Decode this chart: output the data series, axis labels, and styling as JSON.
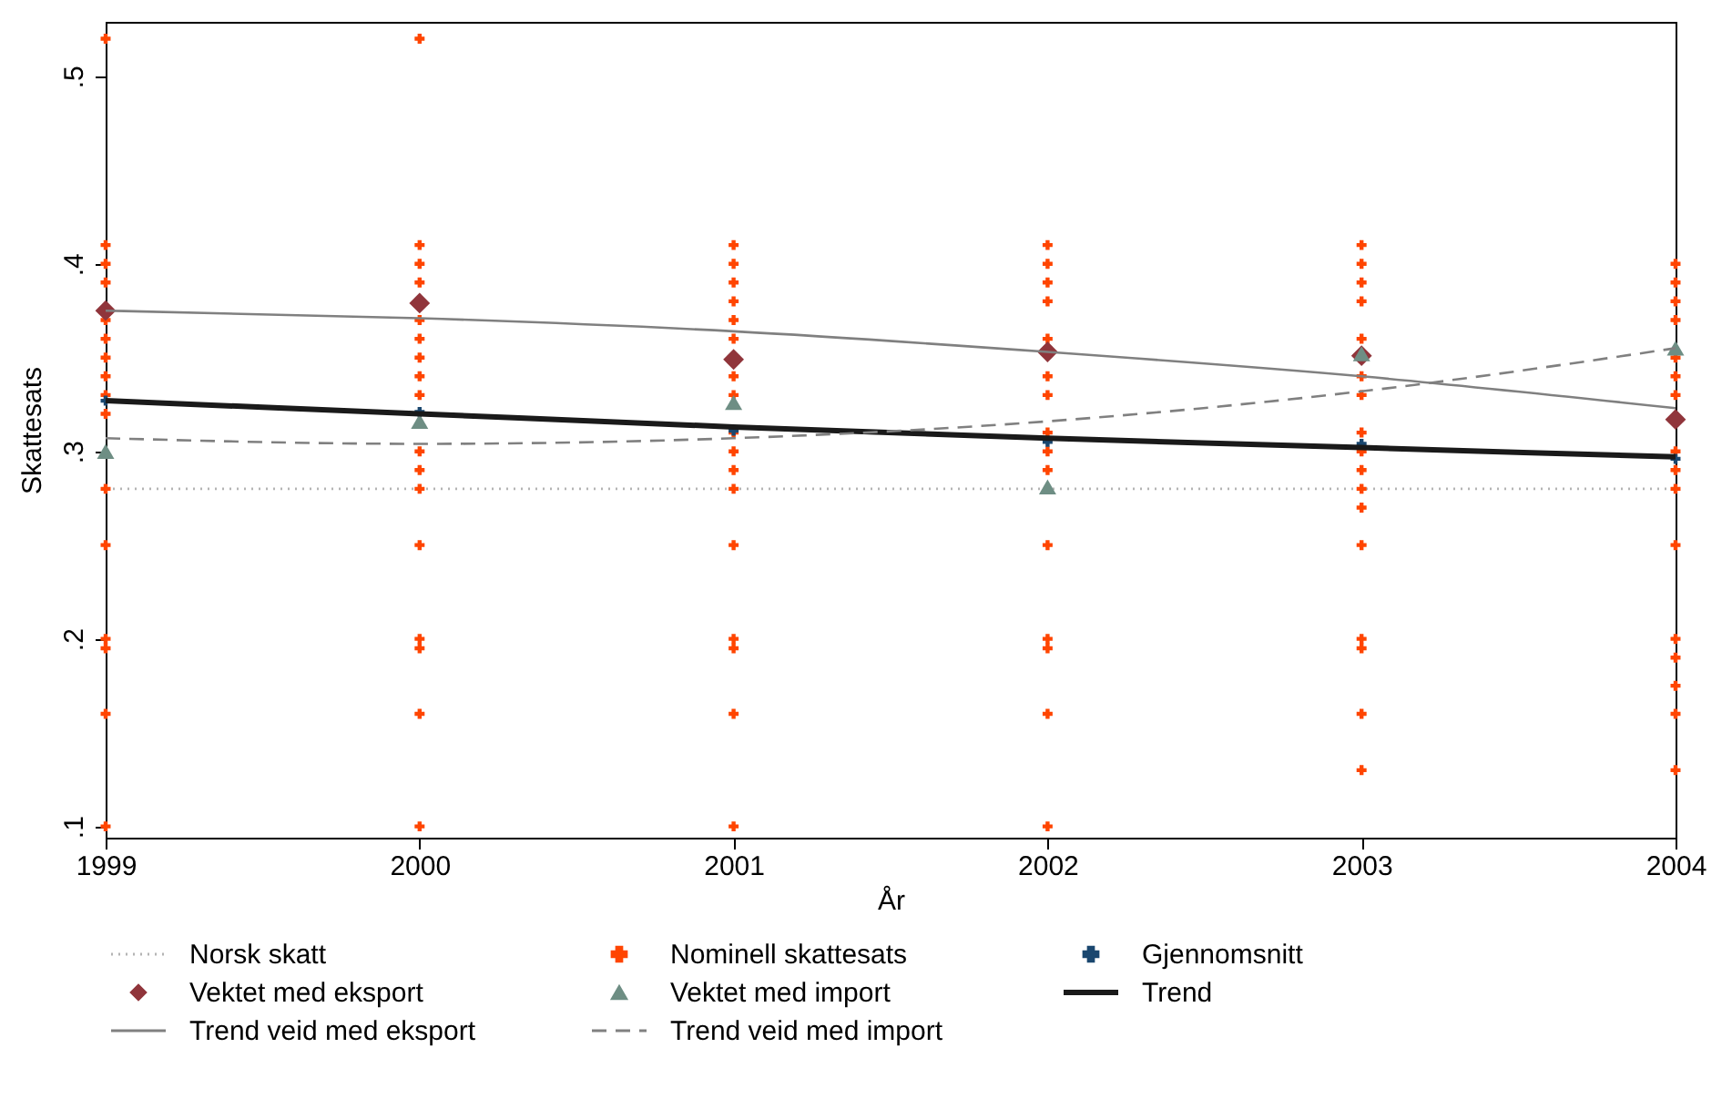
{
  "chart_data": {
    "type": "scatter",
    "xlabel": "År",
    "ylabel": "Skattesats",
    "xlim": [
      1999,
      2004
    ],
    "xticks": [
      1999,
      2000,
      2001,
      2002,
      2003,
      2004
    ],
    "ylim": [
      0.094,
      0.529
    ],
    "yticks": [
      {
        "value": 0.1,
        "label": ".1"
      },
      {
        "value": 0.2,
        "label": ".2"
      },
      {
        "value": 0.3,
        "label": ".3"
      },
      {
        "value": 0.4,
        "label": ".4"
      },
      {
        "value": 0.5,
        "label": ".5"
      }
    ],
    "grid": false,
    "legend": "bottom",
    "series": [
      {
        "name": "Norsk skatt",
        "type": "line",
        "line_style": "dotted",
        "marker": "none",
        "color": "#b4b4b4",
        "x": [
          1999,
          2004
        ],
        "values": [
          0.28,
          0.28
        ]
      },
      {
        "name": "Nominell skattesats",
        "marker": "cross",
        "color": "#ff4500",
        "x": [
          1999,
          1999,
          1999,
          1999,
          1999,
          1999,
          1999,
          1999,
          1999,
          1999,
          1999,
          1999,
          1999,
          1999,
          1999,
          1999,
          2000,
          2000,
          2000,
          2000,
          2000,
          2000,
          2000,
          2000,
          2000,
          2000,
          2000,
          2000,
          2000,
          2000,
          2000,
          2000,
          2000,
          2001,
          2001,
          2001,
          2001,
          2001,
          2001,
          2001,
          2001,
          2001,
          2001,
          2001,
          2001,
          2001,
          2001,
          2001,
          2001,
          2001,
          2002,
          2002,
          2002,
          2002,
          2002,
          2002,
          2002,
          2002,
          2002,
          2002,
          2002,
          2002,
          2002,
          2002,
          2002,
          2003,
          2003,
          2003,
          2003,
          2003,
          2003,
          2003,
          2003,
          2003,
          2003,
          2003,
          2003,
          2003,
          2003,
          2003,
          2003,
          2003,
          2004,
          2004,
          2004,
          2004,
          2004,
          2004,
          2004,
          2004,
          2004,
          2004,
          2004,
          2004,
          2004,
          2004,
          2004,
          2004
        ],
        "values": [
          0.52,
          0.41,
          0.4,
          0.39,
          0.37,
          0.36,
          0.35,
          0.34,
          0.33,
          0.32,
          0.28,
          0.25,
          0.2,
          0.195,
          0.16,
          0.1,
          0.52,
          0.41,
          0.4,
          0.39,
          0.37,
          0.36,
          0.35,
          0.34,
          0.33,
          0.3,
          0.29,
          0.28,
          0.25,
          0.2,
          0.195,
          0.16,
          0.1,
          0.41,
          0.4,
          0.39,
          0.38,
          0.37,
          0.36,
          0.34,
          0.33,
          0.31,
          0.3,
          0.29,
          0.28,
          0.25,
          0.2,
          0.195,
          0.16,
          0.1,
          0.41,
          0.4,
          0.39,
          0.38,
          0.36,
          0.34,
          0.33,
          0.31,
          0.3,
          0.29,
          0.25,
          0.2,
          0.195,
          0.16,
          0.1,
          0.41,
          0.4,
          0.39,
          0.38,
          0.36,
          0.34,
          0.33,
          0.31,
          0.3,
          0.29,
          0.28,
          0.27,
          0.25,
          0.2,
          0.195,
          0.16,
          0.13,
          0.4,
          0.39,
          0.38,
          0.37,
          0.35,
          0.34,
          0.33,
          0.3,
          0.29,
          0.28,
          0.25,
          0.2,
          0.19,
          0.175,
          0.16,
          0.13
        ]
      },
      {
        "name": "Gjennomsnitt",
        "marker": "cross",
        "color": "#1a476f",
        "x": [
          1999,
          2000,
          2001,
          2002,
          2003,
          2004
        ],
        "values": [
          0.327,
          0.321,
          0.311,
          0.305,
          0.304,
          0.296
        ]
      },
      {
        "name": "Vektet med eksport",
        "marker": "diamond",
        "color": "#90353b",
        "x": [
          1999,
          2000,
          2001,
          2002,
          2003,
          2004
        ],
        "values": [
          0.375,
          0.379,
          0.349,
          0.353,
          0.351,
          0.317
        ]
      },
      {
        "name": "Vektet med import",
        "marker": "triangle",
        "color": "#6e8e84",
        "x": [
          1999,
          2000,
          2001,
          2002,
          2003,
          2004
        ],
        "values": [
          0.3,
          0.316,
          0.326,
          0.281,
          0.352,
          0.355
        ]
      },
      {
        "name": "Trend",
        "type": "line",
        "line_style": "solid",
        "marker": "none",
        "color": "#1a1a1a",
        "x": [
          1999,
          2000,
          2001,
          2002,
          2003,
          2004
        ],
        "values": [
          0.327,
          0.32,
          0.313,
          0.307,
          0.302,
          0.297
        ]
      },
      {
        "name": "Trend veid med eksport",
        "type": "line",
        "line_style": "solid",
        "marker": "none",
        "color": "#808080",
        "x": [
          1999,
          2000,
          2001,
          2002,
          2003,
          2004
        ],
        "values": [
          0.375,
          0.371,
          0.364,
          0.353,
          0.34,
          0.323
        ]
      },
      {
        "name": "Trend veid med import",
        "type": "line",
        "line_style": "dashed",
        "marker": "none",
        "color": "#808080",
        "x": [
          1999,
          2000,
          2001,
          2002,
          2003,
          2004
        ],
        "values": [
          0.307,
          0.304,
          0.307,
          0.316,
          0.332,
          0.355
        ]
      }
    ]
  }
}
